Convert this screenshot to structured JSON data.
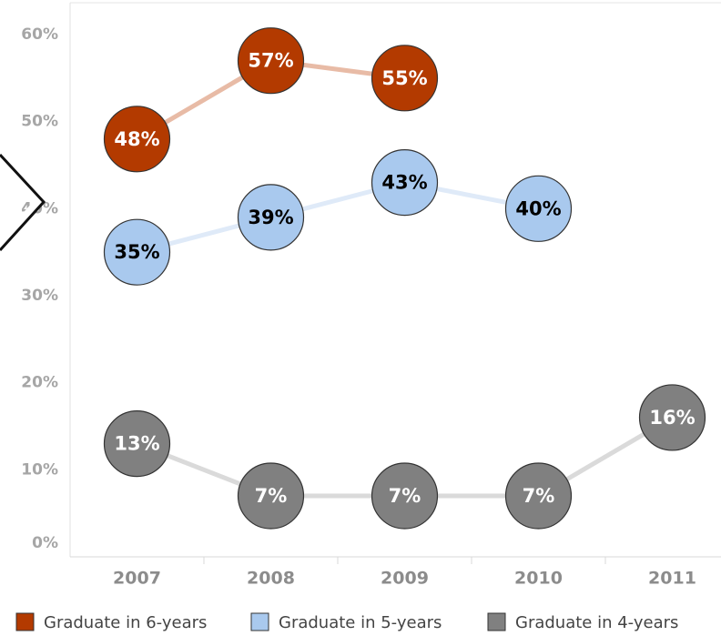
{
  "chart_data": {
    "type": "line",
    "categories": [
      "2007",
      "2008",
      "2009",
      "2010",
      "2011"
    ],
    "series": [
      {
        "name": "Graduate in 6-years",
        "color": "#b33a00",
        "line_color": "#e8bba6",
        "label_color": "#ffffff",
        "values": [
          48,
          57,
          55,
          null,
          null
        ],
        "value_labels": [
          "48%",
          "57%",
          "55%",
          null,
          null
        ]
      },
      {
        "name": "Graduate in 5-years",
        "color": "#a9c9ee",
        "line_color": "#dfeaf8",
        "label_color": "#000000",
        "values": [
          35,
          39,
          43,
          40,
          null
        ],
        "value_labels": [
          "35%",
          "39%",
          "43%",
          "40%",
          null
        ]
      },
      {
        "name": "Graduate in 4-years",
        "color": "#808080",
        "line_color": "#dadada",
        "label_color": "#ffffff",
        "values": [
          13,
          7,
          7,
          7,
          16
        ],
        "value_labels": [
          "13%",
          "7%",
          "7%",
          "7%",
          "16%"
        ]
      }
    ],
    "ylim": [
      0,
      60
    ],
    "yticks": [
      {
        "value": 0,
        "label": "0%"
      },
      {
        "value": 10,
        "label": "10%"
      },
      {
        "value": 20,
        "label": "20%"
      },
      {
        "value": 30,
        "label": "30%"
      },
      {
        "value": 40,
        "label": "40%"
      },
      {
        "value": 50,
        "label": "50%"
      },
      {
        "value": 60,
        "label": "60%"
      }
    ],
    "grid": false
  }
}
